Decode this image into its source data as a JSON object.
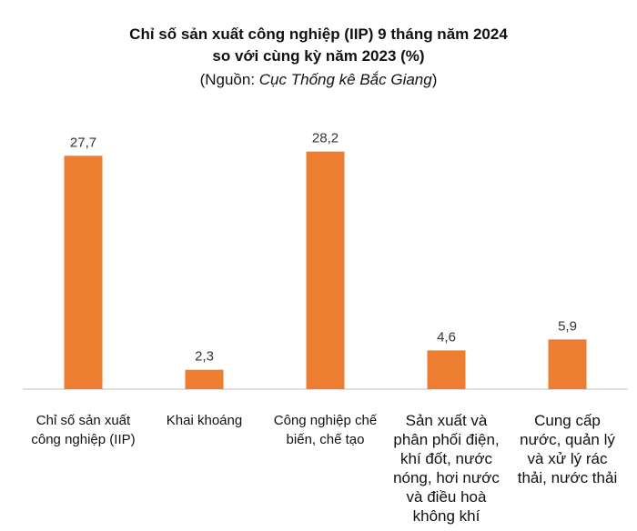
{
  "chart_data": {
    "type": "bar",
    "title": [
      "Chỉ số sản xuất công nghiệp (IIP) 9 tháng năm 2024",
      "so với cùng kỳ năm 2023 (%)"
    ],
    "source": {
      "prefix": "(Nguồn: ",
      "name": "Cục Thống kê Bắc Giang",
      "suffix": ")"
    },
    "categories": [
      "Chỉ số sản xuất công nghiệp (IIP)",
      "Khai khoáng",
      "Công nghiệp chế biến, chế tạo",
      "Sản xuất và phân phối điện, khí đốt, nước nóng, hơi nước và điều hoà không khí",
      "Cung cấp nước, quản lý và xử lý rác thải, nước thải"
    ],
    "values": [
      27.7,
      2.3,
      28.2,
      4.6,
      5.9
    ],
    "value_labels": [
      "27,7",
      "2,3",
      "28,2",
      "4,6",
      "5,9"
    ],
    "color": "#ed7d31",
    "ylim": [
      0,
      30
    ]
  }
}
